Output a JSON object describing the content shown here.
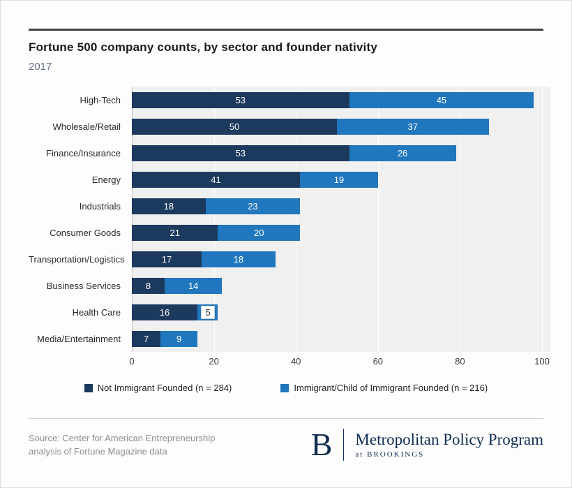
{
  "header": {
    "title": "Fortune 500 company counts, by sector and founder nativity",
    "subtitle": "2017"
  },
  "chart_data": {
    "type": "bar",
    "orientation": "horizontal",
    "stacked": true,
    "title": "Fortune 500 company counts, by sector and founder nativity",
    "subtitle": "2017",
    "categories": [
      "High-Tech",
      "Wholesale/Retail",
      "Finance/Insurance",
      "Energy",
      "Industrials",
      "Consumer Goods",
      "Transportation/Logistics",
      "Business Services",
      "Health Care",
      "Media/Entertainment"
    ],
    "series": [
      {
        "name": "Not Immigrant Founded (n = 284)",
        "color": "#1c3a5e",
        "values": [
          53,
          50,
          53,
          41,
          18,
          21,
          17,
          8,
          16,
          7
        ]
      },
      {
        "name": "Immigrant/Child of Immigrant Founded (n = 216)",
        "color": "#2077bd",
        "values": [
          45,
          37,
          26,
          19,
          23,
          20,
          18,
          14,
          5,
          9
        ]
      }
    ],
    "xlim": [
      0,
      100
    ],
    "xticks": [
      0,
      20,
      40,
      60,
      80,
      100
    ],
    "grid": true,
    "legend_position": "bottom"
  },
  "footer": {
    "source_line1": "Source: Center for American Entrepreneurship",
    "source_line2": "analysis of Fortune Magazine data",
    "logo_letter": "B",
    "program": "Metropolitan Policy Program",
    "program_sub": "at BROOKINGS"
  }
}
